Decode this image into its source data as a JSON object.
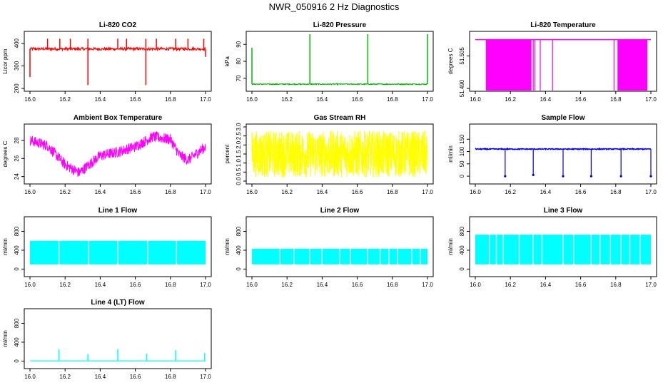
{
  "figure": {
    "title": "NWR_050916  2 Hz Diagnostics"
  },
  "chart_data": [
    {
      "id": "co2",
      "type": "line",
      "title": "Li-820 CO2",
      "ylabel": "Licor ppm",
      "color": "#ff0000",
      "xlim": [
        16.0,
        17.0
      ],
      "ylim": [
        200,
        440
      ],
      "xticks": [
        "16.0",
        "16.2",
        "16.4",
        "16.6",
        "16.8",
        "17.0"
      ],
      "yticks": [
        200,
        300,
        400
      ],
      "series": [
        {
          "name": "CO2",
          "baseline": 375,
          "noise": 6,
          "spikes": [
            {
              "x": 16.0,
              "y": 250
            },
            {
              "x": 16.1,
              "y": 420
            },
            {
              "x": 16.17,
              "y": 420
            },
            {
              "x": 16.23,
              "y": 420
            },
            {
              "x": 16.33,
              "y": 420
            },
            {
              "x": 16.33,
              "y": 215
            },
            {
              "x": 16.5,
              "y": 420
            },
            {
              "x": 16.55,
              "y": 420
            },
            {
              "x": 16.66,
              "y": 420
            },
            {
              "x": 16.66,
              "y": 215
            },
            {
              "x": 16.72,
              "y": 420
            },
            {
              "x": 16.83,
              "y": 420
            },
            {
              "x": 16.9,
              "y": 420
            },
            {
              "x": 16.99,
              "y": 420
            },
            {
              "x": 17.0,
              "y": 340
            }
          ]
        }
      ]
    },
    {
      "id": "pressure",
      "type": "line",
      "title": "Li-820 Pressure",
      "ylabel": "kPa",
      "color": "#00bb00",
      "xlim": [
        16.0,
        17.0
      ],
      "ylim": [
        64,
        96
      ],
      "xticks": [
        "16.0",
        "16.2",
        "16.4",
        "16.6",
        "16.8",
        "17.0"
      ],
      "yticks": [
        70,
        80,
        90
      ],
      "series": [
        {
          "name": "Pressure",
          "baseline": 66.5,
          "noise": 0.3,
          "spikes": [
            {
              "x": 16.0,
              "y": 88
            },
            {
              "x": 16.33,
              "y": 96
            },
            {
              "x": 16.66,
              "y": 96
            },
            {
              "x": 17.0,
              "y": 96
            }
          ]
        }
      ]
    },
    {
      "id": "temperature",
      "type": "line",
      "title": "Li-820 Temperature",
      "ylabel": "degrees C",
      "color": "#ff00ff",
      "xlim": [
        16.0,
        17.0
      ],
      "ylim": [
        51.49,
        51.515
      ],
      "xticks": [
        "16.0",
        "16.2",
        "16.4",
        "16.6",
        "16.8",
        "17.0"
      ],
      "yticks": [
        "51.490",
        "51.505"
      ],
      "series": [
        {
          "name": "Temperature",
          "high": 51.5125,
          "low": 51.488,
          "dense_blocks": [
            [
              16.06,
              16.32
            ],
            [
              16.81,
              16.98
            ]
          ],
          "sparse_lines": [
            16.33,
            16.34,
            16.37,
            16.44,
            16.79
          ]
        }
      ]
    },
    {
      "id": "ambient",
      "type": "line",
      "title": "Ambient Box Temperature",
      "ylabel": "degrees C",
      "color": "#ff00ff",
      "xlim": [
        16.0,
        17.0
      ],
      "ylim": [
        23.5,
        29.5
      ],
      "xticks": [
        "16.0",
        "16.2",
        "16.4",
        "16.6",
        "16.8",
        "17.0"
      ],
      "yticks": [
        24,
        26,
        28
      ],
      "series": [
        {
          "name": "Ambient",
          "x": [
            16.0,
            16.1,
            16.2,
            16.28,
            16.4,
            16.5,
            16.6,
            16.7,
            16.8,
            16.85,
            16.9,
            17.0
          ],
          "y": [
            28.2,
            27.6,
            25.5,
            24.6,
            26.5,
            26.9,
            27.5,
            28.6,
            28.3,
            26.6,
            26.0,
            27.5
          ]
        }
      ]
    },
    {
      "id": "rh",
      "type": "line",
      "title": "Gas Stream RH",
      "ylabel": "percent",
      "color": "#ffff00",
      "xlim": [
        16.0,
        17.0
      ],
      "ylim": [
        0,
        3.0
      ],
      "xticks": [
        "16.0",
        "16.2",
        "16.4",
        "16.6",
        "16.8",
        "17.0"
      ],
      "yticks": [
        "0.0",
        "0.5",
        "1.0",
        "1.5",
        "2.0",
        "2.5",
        "3.0"
      ],
      "series": [
        {
          "name": "RH",
          "mean": 1.4,
          "range": [
            0.2,
            2.8
          ]
        }
      ]
    },
    {
      "id": "sample",
      "type": "line",
      "title": "Sample Flow",
      "ylabel": "ml/min",
      "color": "#0000dd",
      "xlim": [
        16.0,
        17.0
      ],
      "ylim": [
        -20,
        200
      ],
      "xticks": [
        "16.0",
        "16.2",
        "16.4",
        "16.6",
        "16.8",
        "17.0"
      ],
      "yticks": [
        0,
        50,
        100,
        150
      ],
      "series": [
        {
          "name": "Sample",
          "baseline": 110,
          "noise": 2,
          "drops": [
            {
              "x": 16.17,
              "y": 0
            },
            {
              "x": 16.33,
              "y": 5
            },
            {
              "x": 16.5,
              "y": 0
            },
            {
              "x": 16.66,
              "y": 0
            },
            {
              "x": 16.83,
              "y": 0
            },
            {
              "x": 17.0,
              "y": 0
            }
          ]
        }
      ]
    },
    {
      "id": "line1",
      "type": "line",
      "title": "Line 1 Flow",
      "ylabel": "ml/min",
      "color": "#00ffff",
      "xlim": [
        16.0,
        17.0
      ],
      "ylim": [
        -100,
        1050
      ],
      "xticks": [
        "16.0",
        "16.2",
        "16.4",
        "16.6",
        "16.8",
        "17.0"
      ],
      "yticks": [
        0,
        400,
        800
      ],
      "series": [
        {
          "name": "Line 1",
          "high": 600,
          "low": 100,
          "gaps": [
            16.165,
            16.335,
            16.5,
            16.67,
            16.835
          ]
        }
      ]
    },
    {
      "id": "line2",
      "type": "line",
      "title": "Line 2 Flow",
      "ylabel": "ml/min",
      "color": "#00ffff",
      "xlim": [
        16.0,
        17.0
      ],
      "ylim": [
        -100,
        1050
      ],
      "xticks": [
        "16.0",
        "16.2",
        "16.4",
        "16.6",
        "16.8",
        "17.0"
      ],
      "yticks": [
        0,
        400,
        800
      ],
      "series": [
        {
          "name": "Line 2",
          "high": 430,
          "low": 100,
          "gaps": [
            16.16,
            16.24,
            16.33,
            16.4,
            16.5,
            16.56,
            16.66,
            16.73,
            16.78,
            16.83,
            16.91,
            16.96
          ]
        }
      ]
    },
    {
      "id": "line3",
      "type": "line",
      "title": "Line 3 Flow",
      "ylabel": "ml/min",
      "color": "#00ffff",
      "xlim": [
        16.0,
        17.0
      ],
      "ylim": [
        -100,
        1050
      ],
      "xticks": [
        "16.0",
        "16.2",
        "16.4",
        "16.6",
        "16.8",
        "17.0"
      ],
      "yticks": [
        0,
        400,
        800
      ],
      "series": [
        {
          "name": "Line 3",
          "high": 730,
          "low": 100,
          "gaps": [
            16.08,
            16.12,
            16.16,
            16.25,
            16.33,
            16.38,
            16.5,
            16.56,
            16.66,
            16.71,
            16.77,
            16.83,
            16.88,
            16.94
          ]
        }
      ]
    },
    {
      "id": "line4",
      "type": "line",
      "title": "Line 4 (LT) Flow",
      "ylabel": "ml/min",
      "color": "#00ffff",
      "xlim": [
        16.0,
        17.0
      ],
      "ylim": [
        -100,
        1050
      ],
      "xticks": [
        "16.0",
        "16.2",
        "16.4",
        "16.6",
        "16.8",
        "17.0"
      ],
      "yticks": [
        0,
        400,
        800
      ],
      "series": [
        {
          "name": "Line 4",
          "baseline": 5,
          "spikes": [
            {
              "x": 16.165,
              "y": 250
            },
            {
              "x": 16.33,
              "y": 150
            },
            {
              "x": 16.5,
              "y": 250
            },
            {
              "x": 16.665,
              "y": 160
            },
            {
              "x": 16.83,
              "y": 230
            },
            {
              "x": 16.995,
              "y": 170
            }
          ]
        }
      ]
    }
  ]
}
